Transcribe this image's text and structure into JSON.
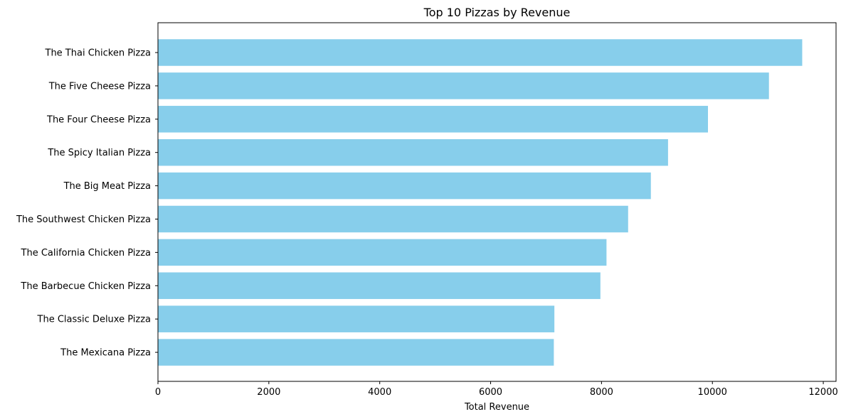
{
  "chart_data": {
    "type": "bar",
    "orientation": "horizontal",
    "title": "Top 10 Pizzas by Revenue",
    "xlabel": "Total Revenue",
    "ylabel": "",
    "xlim": [
      0,
      12230
    ],
    "xticks": [
      0,
      2000,
      4000,
      6000,
      8000,
      10000,
      12000
    ],
    "xtick_labels": [
      "0",
      "2000",
      "4000",
      "6000",
      "8000",
      "10000",
      "12000"
    ],
    "categories": [
      "The Thai Chicken Pizza",
      "The Five Cheese Pizza",
      "The Four Cheese Pizza",
      "The Spicy Italian Pizza",
      "The Big Meat Pizza",
      "The Southwest Chicken Pizza",
      "The California Chicken Pizza",
      "The Barbecue Chicken Pizza",
      "The Classic Deluxe Pizza",
      "The Mexicana Pizza"
    ],
    "values": [
      11620,
      11020,
      9920,
      9200,
      8890,
      8480,
      8090,
      7980,
      7150,
      7140
    ],
    "bar_color": "#87ceeb",
    "grid": false,
    "legend": "none"
  }
}
